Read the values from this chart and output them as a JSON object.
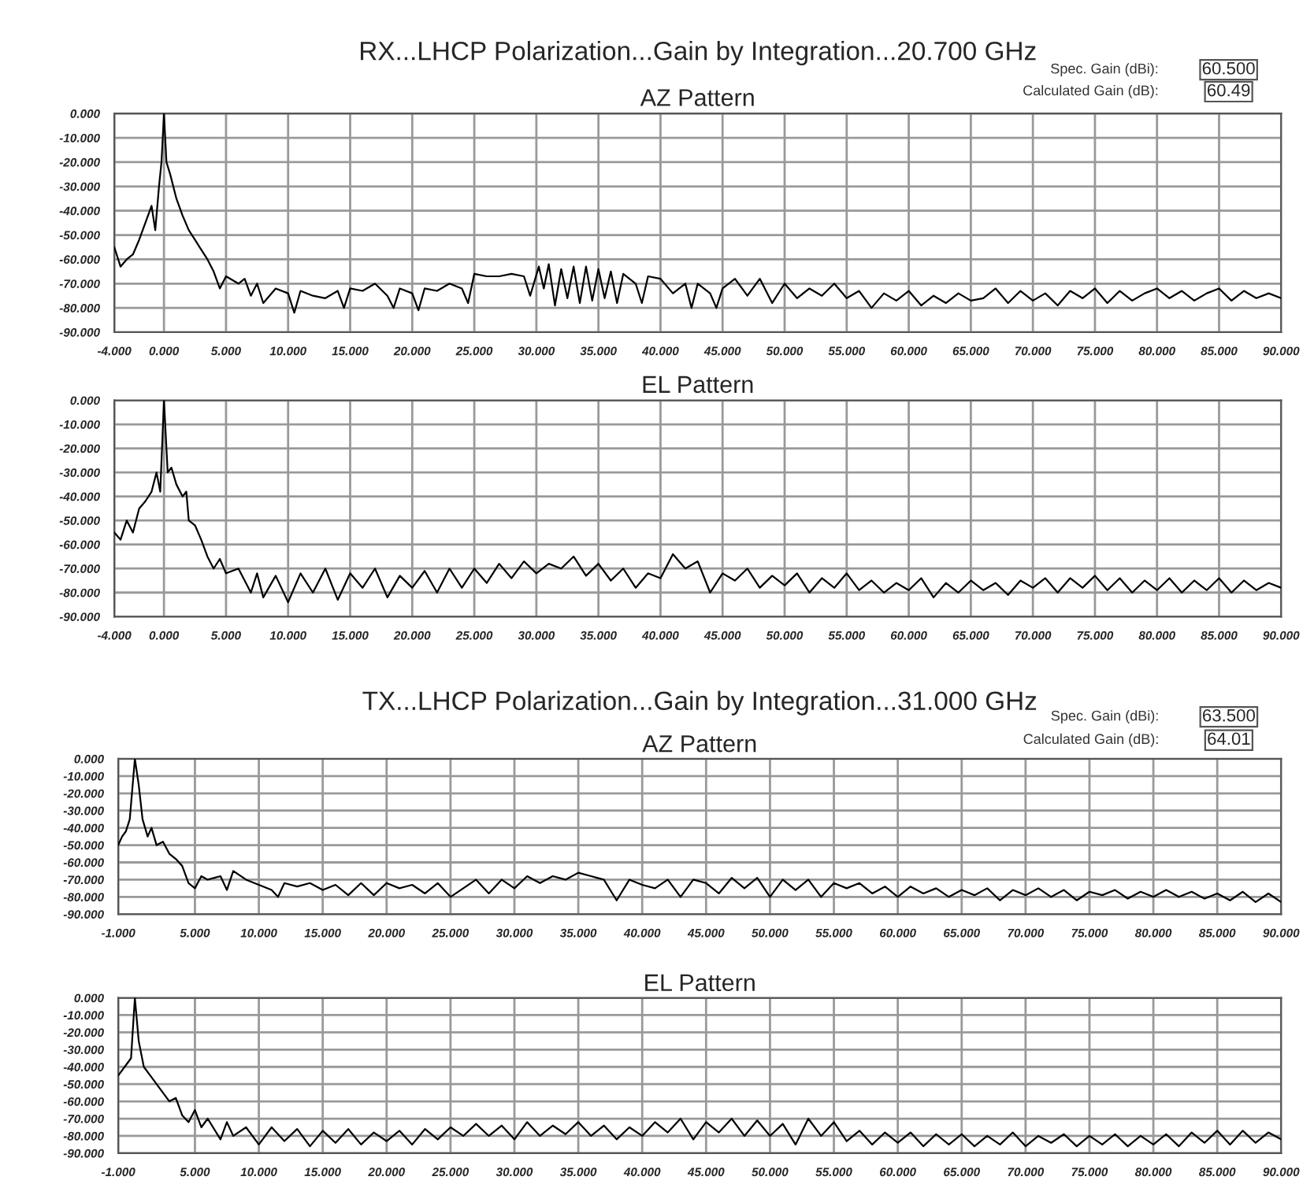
{
  "chart_data": [
    {
      "type": "line",
      "title": "RX...LHCP Polarization...Gain by Integration...20.700 GHz",
      "subtitle": "AZ Pattern",
      "annotations": [
        "Spec. Gain (dBi):",
        "60.500",
        "Calculated Gain (dB):",
        "60.49"
      ],
      "xlim": [
        -4,
        90
      ],
      "ylim": [
        -90,
        0
      ],
      "xticks": [
        {
          "value": -4,
          "label": "-4.000"
        },
        {
          "value": 0,
          "label": "0.000"
        },
        {
          "value": 5,
          "label": "5.000"
        },
        {
          "value": 10,
          "label": "10.000"
        },
        {
          "value": 15,
          "label": "15.000"
        },
        {
          "value": 20,
          "label": "20.000"
        },
        {
          "value": 25,
          "label": "25.000"
        },
        {
          "value": 30,
          "label": "30.000"
        },
        {
          "value": 35,
          "label": "35.000"
        },
        {
          "value": 40,
          "label": "40.000"
        },
        {
          "value": 45,
          "label": "45.000"
        },
        {
          "value": 50,
          "label": "50.000"
        },
        {
          "value": 55,
          "label": "55.000"
        },
        {
          "value": 60,
          "label": "60.000"
        },
        {
          "value": 65,
          "label": "65.000"
        },
        {
          "value": 70,
          "label": "70.000"
        },
        {
          "value": 75,
          "label": "75.000"
        },
        {
          "value": 80,
          "label": "80.000"
        },
        {
          "value": 85,
          "label": "85.000"
        },
        {
          "value": 90,
          "label": "90.000"
        }
      ],
      "yticks": [
        {
          "value": 0,
          "label": "0.000"
        },
        {
          "value": -10,
          "label": "-10.000"
        },
        {
          "value": -20,
          "label": "-20.000"
        },
        {
          "value": -30,
          "label": "-30.000"
        },
        {
          "value": -40,
          "label": "-40.000"
        },
        {
          "value": -50,
          "label": "-50.000"
        },
        {
          "value": -60,
          "label": "-60.000"
        },
        {
          "value": -70,
          "label": "-70.000"
        },
        {
          "value": -80,
          "label": "-80.000"
        },
        {
          "value": -90,
          "label": "-90.000"
        }
      ],
      "grid": true,
      "marker": "none",
      "line_style": "solid",
      "series": [
        {
          "color": "#000000",
          "x": [
            -4,
            -3.5,
            -3,
            -2.5,
            -2,
            -1.5,
            -1,
            -0.7,
            -0.4,
            -0.2,
            0,
            0.2,
            0.5,
            1,
            1.5,
            2,
            2.5,
            3,
            3.5,
            4,
            4.5,
            5,
            6,
            6.5,
            7,
            7.5,
            8,
            9,
            10,
            10.5,
            11,
            12,
            13,
            14,
            14.5,
            15,
            16,
            17,
            18,
            18.5,
            19,
            20,
            20.5,
            21,
            22,
            23,
            24,
            24.5,
            25,
            26,
            27,
            28,
            29,
            29.5,
            30.2,
            30.6,
            31,
            31.5,
            32,
            32.5,
            33,
            33.5,
            34,
            34.5,
            35,
            35.5,
            36,
            36.5,
            37,
            38,
            38.5,
            39,
            40,
            41,
            42,
            42.5,
            43,
            44,
            44.5,
            45,
            46,
            47,
            48,
            49,
            50,
            51,
            52,
            53,
            54,
            55,
            56,
            57,
            58,
            59,
            60,
            61,
            62,
            63,
            64,
            65,
            66,
            67,
            68,
            69,
            70,
            71,
            72,
            73,
            74,
            75,
            76,
            77,
            78,
            79,
            80,
            81,
            82,
            83,
            84,
            85,
            86,
            87,
            88,
            89,
            90
          ],
          "values": [
            -55,
            -63,
            -60,
            -58,
            -52,
            -45,
            -38,
            -48,
            -30,
            -20,
            0,
            -20,
            -25,
            -35,
            -42,
            -48,
            -52,
            -56,
            -60,
            -65,
            -72,
            -67,
            -70,
            -68,
            -75,
            -70,
            -78,
            -72,
            -74,
            -82,
            -73,
            -75,
            -76,
            -73,
            -80,
            -72,
            -73,
            -70,
            -75,
            -80,
            -72,
            -74,
            -81,
            -72,
            -73,
            -70,
            -72,
            -78,
            -66,
            -67,
            -67,
            -66,
            -67,
            -75,
            -63,
            -72,
            -62,
            -79,
            -64,
            -76,
            -63,
            -78,
            -63,
            -77,
            -64,
            -76,
            -65,
            -78,
            -66,
            -70,
            -78,
            -67,
            -68,
            -74,
            -70,
            -80,
            -70,
            -74,
            -80,
            -72,
            -68,
            -75,
            -68,
            -78,
            -70,
            -76,
            -72,
            -75,
            -70,
            -76,
            -73,
            -80,
            -74,
            -77,
            -73,
            -79,
            -75,
            -78,
            -74,
            -77,
            -76,
            -72,
            -78,
            -73,
            -77,
            -74,
            -79,
            -73,
            -76,
            -72,
            -78,
            -73,
            -77,
            -74,
            -72,
            -76,
            -73,
            -77,
            -74,
            -72,
            -77,
            -73,
            -76,
            -74,
            -76
          ]
        }
      ]
    },
    {
      "type": "line",
      "title": "EL Pattern",
      "xlim": [
        -4,
        90
      ],
      "ylim": [
        -90,
        0
      ],
      "xticks": [
        {
          "value": -4,
          "label": "-4.000"
        },
        {
          "value": 0,
          "label": "0.000"
        },
        {
          "value": 5,
          "label": "5.000"
        },
        {
          "value": 10,
          "label": "10.000"
        },
        {
          "value": 15,
          "label": "15.000"
        },
        {
          "value": 20,
          "label": "20.000"
        },
        {
          "value": 25,
          "label": "25.000"
        },
        {
          "value": 30,
          "label": "30.000"
        },
        {
          "value": 35,
          "label": "35.000"
        },
        {
          "value": 40,
          "label": "40.000"
        },
        {
          "value": 45,
          "label": "45.000"
        },
        {
          "value": 50,
          "label": "50.000"
        },
        {
          "value": 55,
          "label": "55.000"
        },
        {
          "value": 60,
          "label": "60.000"
        },
        {
          "value": 65,
          "label": "65.000"
        },
        {
          "value": 70,
          "label": "70.000"
        },
        {
          "value": 75,
          "label": "75.000"
        },
        {
          "value": 80,
          "label": "80.000"
        },
        {
          "value": 85,
          "label": "85.000"
        },
        {
          "value": 90,
          "label": "90.000"
        }
      ],
      "yticks": [
        {
          "value": 0,
          "label": "0.000"
        },
        {
          "value": -10,
          "label": "-10.000"
        },
        {
          "value": -20,
          "label": "-20.000"
        },
        {
          "value": -30,
          "label": "-30.000"
        },
        {
          "value": -40,
          "label": "-40.000"
        },
        {
          "value": -50,
          "label": "-50.000"
        },
        {
          "value": -60,
          "label": "-60.000"
        },
        {
          "value": -70,
          "label": "-70.000"
        },
        {
          "value": -80,
          "label": "-80.000"
        },
        {
          "value": -90,
          "label": "-90.000"
        }
      ],
      "grid": true,
      "marker": "none",
      "line_style": "solid",
      "series": [
        {
          "color": "#000000",
          "x": [
            -4,
            -3.5,
            -3,
            -2.5,
            -2,
            -1.5,
            -1,
            -0.6,
            -0.3,
            0,
            0.3,
            0.6,
            1,
            1.5,
            1.8,
            2,
            2.5,
            3,
            3.5,
            4,
            4.5,
            5,
            6,
            7,
            7.5,
            8,
            9,
            10,
            11,
            12,
            13,
            14,
            15,
            16,
            17,
            18,
            19,
            20,
            21,
            22,
            23,
            24,
            25,
            26,
            27,
            28,
            29,
            30,
            31,
            32,
            33,
            34,
            35,
            36,
            37,
            38,
            39,
            40,
            41,
            42,
            43,
            44,
            45,
            46,
            47,
            48,
            49,
            50,
            51,
            52,
            53,
            54,
            55,
            56,
            57,
            58,
            59,
            60,
            61,
            62,
            63,
            64,
            65,
            66,
            67,
            68,
            69,
            70,
            71,
            72,
            73,
            74,
            75,
            76,
            77,
            78,
            79,
            80,
            81,
            82,
            83,
            84,
            85,
            86,
            87,
            88,
            89,
            90
          ],
          "values": [
            -55,
            -58,
            -50,
            -55,
            -45,
            -42,
            -38,
            -30,
            -38,
            0,
            -30,
            -28,
            -35,
            -40,
            -38,
            -50,
            -52,
            -58,
            -65,
            -70,
            -66,
            -72,
            -70,
            -80,
            -72,
            -82,
            -73,
            -84,
            -72,
            -80,
            -70,
            -83,
            -72,
            -78,
            -70,
            -82,
            -73,
            -78,
            -71,
            -80,
            -70,
            -78,
            -70,
            -76,
            -68,
            -74,
            -67,
            -72,
            -68,
            -70,
            -65,
            -73,
            -68,
            -75,
            -70,
            -78,
            -72,
            -74,
            -64,
            -70,
            -67,
            -80,
            -72,
            -75,
            -70,
            -78,
            -73,
            -77,
            -72,
            -80,
            -74,
            -78,
            -72,
            -79,
            -75,
            -80,
            -76,
            -79,
            -74,
            -82,
            -76,
            -80,
            -75,
            -79,
            -76,
            -81,
            -75,
            -78,
            -74,
            -80,
            -74,
            -78,
            -73,
            -79,
            -74,
            -80,
            -75,
            -79,
            -74,
            -80,
            -75,
            -79,
            -74,
            -80,
            -75,
            -79,
            -76,
            -78
          ]
        }
      ]
    },
    {
      "type": "line",
      "title": "TX...LHCP Polarization...Gain by Integration...31.000 GHz",
      "subtitle": "AZ Pattern",
      "annotations": [
        "Spec. Gain (dBi):",
        "63.500",
        "Calculated Gain (dB):",
        "64.01"
      ],
      "xlim": [
        -1,
        90
      ],
      "ylim": [
        -90,
        0
      ],
      "xticks": [
        {
          "value": -1,
          "label": "-1.000"
        },
        {
          "value": 5,
          "label": "5.000"
        },
        {
          "value": 10,
          "label": "10.000"
        },
        {
          "value": 15,
          "label": "15.000"
        },
        {
          "value": 20,
          "label": "20.000"
        },
        {
          "value": 25,
          "label": "25.000"
        },
        {
          "value": 30,
          "label": "30.000"
        },
        {
          "value": 35,
          "label": "35.000"
        },
        {
          "value": 40,
          "label": "40.000"
        },
        {
          "value": 45,
          "label": "45.000"
        },
        {
          "value": 50,
          "label": "50.000"
        },
        {
          "value": 55,
          "label": "55.000"
        },
        {
          "value": 60,
          "label": "60.000"
        },
        {
          "value": 65,
          "label": "65.000"
        },
        {
          "value": 70,
          "label": "70.000"
        },
        {
          "value": 75,
          "label": "75.000"
        },
        {
          "value": 80,
          "label": "80.000"
        },
        {
          "value": 85,
          "label": "85.000"
        },
        {
          "value": 90,
          "label": "90.000"
        }
      ],
      "yticks": [
        {
          "value": 0,
          "label": "0.000"
        },
        {
          "value": -10,
          "label": "-10.000"
        },
        {
          "value": -20,
          "label": "-20.000"
        },
        {
          "value": -30,
          "label": "-30.000"
        },
        {
          "value": -40,
          "label": "-40.000"
        },
        {
          "value": -50,
          "label": "-50.000"
        },
        {
          "value": -60,
          "label": "-60.000"
        },
        {
          "value": -70,
          "label": "-70.000"
        },
        {
          "value": -80,
          "label": "-80.000"
        },
        {
          "value": -90,
          "label": "-90.000"
        }
      ],
      "grid": true,
      "marker": "none",
      "line_style": "solid",
      "series": [
        {
          "color": "#000000",
          "x": [
            -1,
            -0.7,
            -0.4,
            -0.1,
            0.3,
            0.6,
            0.9,
            1.3,
            1.6,
            2,
            2.5,
            3,
            3.5,
            4,
            4.5,
            5,
            5.5,
            6,
            7,
            7.5,
            8,
            9,
            10,
            11,
            11.5,
            12,
            13,
            14,
            15,
            16,
            17,
            18,
            19,
            20,
            21,
            22,
            23,
            24,
            25,
            26,
            27,
            28,
            29,
            30,
            31,
            32,
            33,
            34,
            35,
            36,
            37,
            38,
            39,
            40,
            41,
            42,
            43,
            44,
            45,
            46,
            47,
            48,
            49,
            50,
            51,
            52,
            53,
            54,
            55,
            56,
            57,
            58,
            59,
            60,
            61,
            62,
            63,
            64,
            65,
            66,
            67,
            68,
            69,
            70,
            71,
            72,
            73,
            74,
            75,
            76,
            77,
            78,
            79,
            80,
            81,
            82,
            83,
            84,
            85,
            86,
            87,
            88,
            89,
            90
          ],
          "values": [
            -50,
            -45,
            -42,
            -35,
            0,
            -15,
            -35,
            -45,
            -40,
            -50,
            -48,
            -55,
            -58,
            -62,
            -72,
            -75,
            -68,
            -70,
            -68,
            -76,
            -65,
            -70,
            -73,
            -76,
            -80,
            -72,
            -74,
            -72,
            -76,
            -73,
            -79,
            -72,
            -79,
            -72,
            -75,
            -73,
            -78,
            -72,
            -80,
            -75,
            -70,
            -78,
            -70,
            -75,
            -68,
            -72,
            -68,
            -70,
            -66,
            -68,
            -70,
            -82,
            -70,
            -73,
            -75,
            -70,
            -80,
            -70,
            -72,
            -78,
            -69,
            -75,
            -69,
            -80,
            -70,
            -76,
            -70,
            -80,
            -72,
            -75,
            -72,
            -78,
            -74,
            -80,
            -74,
            -78,
            -75,
            -80,
            -76,
            -79,
            -75,
            -82,
            -76,
            -79,
            -75,
            -80,
            -76,
            -82,
            -77,
            -79,
            -76,
            -81,
            -77,
            -80,
            -76,
            -80,
            -77,
            -81,
            -78,
            -82,
            -77,
            -83,
            -78,
            -83
          ]
        }
      ]
    },
    {
      "type": "line",
      "title": "EL Pattern",
      "xlim": [
        -1,
        90
      ],
      "ylim": [
        -90,
        0
      ],
      "xticks": [
        {
          "value": -1,
          "label": "-1.000"
        },
        {
          "value": 5,
          "label": "5.000"
        },
        {
          "value": 10,
          "label": "10.000"
        },
        {
          "value": 15,
          "label": "15.000"
        },
        {
          "value": 20,
          "label": "20.000"
        },
        {
          "value": 25,
          "label": "25.000"
        },
        {
          "value": 30,
          "label": "30.000"
        },
        {
          "value": 35,
          "label": "35.000"
        },
        {
          "value": 40,
          "label": "40.000"
        },
        {
          "value": 45,
          "label": "45.000"
        },
        {
          "value": 50,
          "label": "50.000"
        },
        {
          "value": 55,
          "label": "55.000"
        },
        {
          "value": 60,
          "label": "60.000"
        },
        {
          "value": 65,
          "label": "65.000"
        },
        {
          "value": 70,
          "label": "70.000"
        },
        {
          "value": 75,
          "label": "75.000"
        },
        {
          "value": 80,
          "label": "80.000"
        },
        {
          "value": 85,
          "label": "85.000"
        },
        {
          "value": 90,
          "label": "90.000"
        }
      ],
      "yticks": [
        {
          "value": 0,
          "label": "0.000"
        },
        {
          "value": -10,
          "label": "-10.000"
        },
        {
          "value": -20,
          "label": "-20.000"
        },
        {
          "value": -30,
          "label": "-30.000"
        },
        {
          "value": -40,
          "label": "-40.000"
        },
        {
          "value": -50,
          "label": "-50.000"
        },
        {
          "value": -60,
          "label": "-60.000"
        },
        {
          "value": -70,
          "label": "-70.000"
        },
        {
          "value": -80,
          "label": "-80.000"
        },
        {
          "value": -90,
          "label": "-90.000"
        }
      ],
      "grid": true,
      "marker": "none",
      "line_style": "solid",
      "series": [
        {
          "color": "#000000",
          "x": [
            -1,
            -0.5,
            0,
            0.3,
            0.6,
            1,
            1.5,
            2,
            2.5,
            3,
            3.5,
            4,
            4.5,
            5,
            5.5,
            6,
            7,
            7.5,
            8,
            9,
            10,
            11,
            12,
            13,
            14,
            15,
            16,
            17,
            18,
            19,
            20,
            21,
            22,
            23,
            24,
            25,
            26,
            27,
            28,
            29,
            30,
            31,
            32,
            33,
            34,
            35,
            36,
            37,
            38,
            39,
            40,
            41,
            42,
            43,
            44,
            45,
            46,
            47,
            48,
            49,
            50,
            51,
            52,
            53,
            54,
            55,
            56,
            57,
            58,
            59,
            60,
            61,
            62,
            63,
            64,
            65,
            66,
            67,
            68,
            69,
            70,
            71,
            72,
            73,
            74,
            75,
            76,
            77,
            78,
            79,
            80,
            81,
            82,
            83,
            84,
            85,
            86,
            87,
            88,
            89,
            90
          ],
          "values": [
            -45,
            -40,
            -35,
            0,
            -25,
            -40,
            -45,
            -50,
            -55,
            -60,
            -58,
            -68,
            -72,
            -65,
            -75,
            -70,
            -82,
            -72,
            -80,
            -75,
            -85,
            -75,
            -83,
            -76,
            -86,
            -77,
            -84,
            -76,
            -85,
            -78,
            -83,
            -77,
            -85,
            -76,
            -82,
            -75,
            -80,
            -73,
            -80,
            -74,
            -82,
            -72,
            -80,
            -74,
            -79,
            -72,
            -80,
            -74,
            -82,
            -75,
            -80,
            -72,
            -78,
            -70,
            -82,
            -72,
            -78,
            -70,
            -80,
            -71,
            -80,
            -73,
            -85,
            -70,
            -80,
            -72,
            -83,
            -77,
            -85,
            -78,
            -84,
            -78,
            -86,
            -79,
            -85,
            -79,
            -86,
            -80,
            -85,
            -78,
            -86,
            -80,
            -84,
            -79,
            -86,
            -80,
            -85,
            -79,
            -86,
            -80,
            -85,
            -79,
            -86,
            -78,
            -84,
            -77,
            -85,
            -77,
            -84,
            -78,
            -82
          ]
        }
      ]
    }
  ]
}
